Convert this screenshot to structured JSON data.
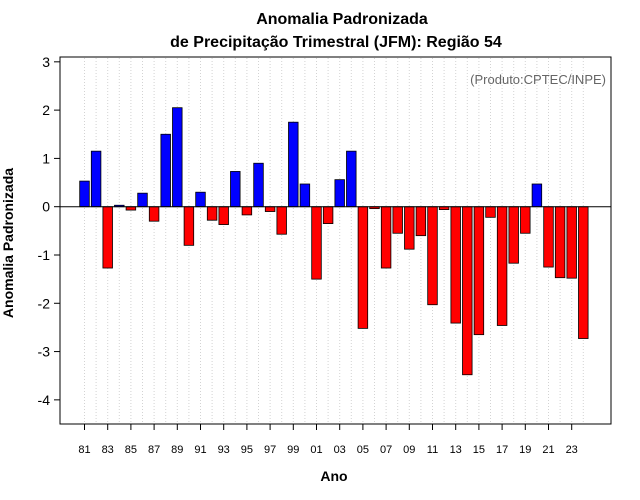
{
  "chart_data": {
    "type": "bar",
    "title": [
      "Anomalia Padronizada",
      "de Precipitação Trimestral (JFM): Região 54"
    ],
    "xlabel": "Ano",
    "ylabel": "Anomalia Padronizada",
    "annotation": "(Produto:CPTEC/INPE)",
    "ylim": [
      -4.5,
      3.1
    ],
    "yticks": [
      3,
      2,
      1,
      0,
      -1,
      -2,
      -3,
      -4
    ],
    "ytick_labels": [
      "3",
      "2",
      "1",
      "0",
      "-1",
      "-2",
      "-3",
      "-4"
    ],
    "grid": "vertical dotted",
    "categories": [
      "1981",
      "1982",
      "1983",
      "1984",
      "1985",
      "1986",
      "1987",
      "1988",
      "1989",
      "1990",
      "1991",
      "1992",
      "1993",
      "1994",
      "1995",
      "1996",
      "1997",
      "1998",
      "1999",
      "2000",
      "2001",
      "2002",
      "2003",
      "2004",
      "2005",
      "2006",
      "2007",
      "2008",
      "2009",
      "2010",
      "2011",
      "2012",
      "2013",
      "2014",
      "2015",
      "2016",
      "2017",
      "2018",
      "2019",
      "2020",
      "2021",
      "2022",
      "2023",
      "2024"
    ],
    "xtick_labels": [
      "81",
      "83",
      "85",
      "87",
      "89",
      "91",
      "93",
      "95",
      "97",
      "99",
      "01",
      "03",
      "05",
      "07",
      "09",
      "11",
      "13",
      "15",
      "17",
      "19",
      "21",
      "23"
    ],
    "values": [
      0.53,
      1.15,
      -1.27,
      0.03,
      -0.07,
      0.28,
      -0.3,
      1.5,
      2.05,
      -0.8,
      0.3,
      -0.28,
      -0.37,
      0.73,
      -0.17,
      0.9,
      -0.1,
      -0.57,
      1.75,
      0.47,
      -1.5,
      -0.35,
      0.56,
      1.15,
      -2.52,
      -0.04,
      -1.27,
      -0.55,
      -0.88,
      -0.6,
      -2.03,
      -0.06,
      -2.41,
      -3.48,
      -2.65,
      -0.22,
      -2.46,
      -1.17,
      -0.55,
      0.47,
      -1.25,
      -1.47,
      -1.48,
      -2.73
    ],
    "colors": {
      "positive": "#0000ff",
      "negative": "#ff0000",
      "bar_stroke": "#000000",
      "grid": "#d3d3d3",
      "credit": "#666666"
    }
  }
}
